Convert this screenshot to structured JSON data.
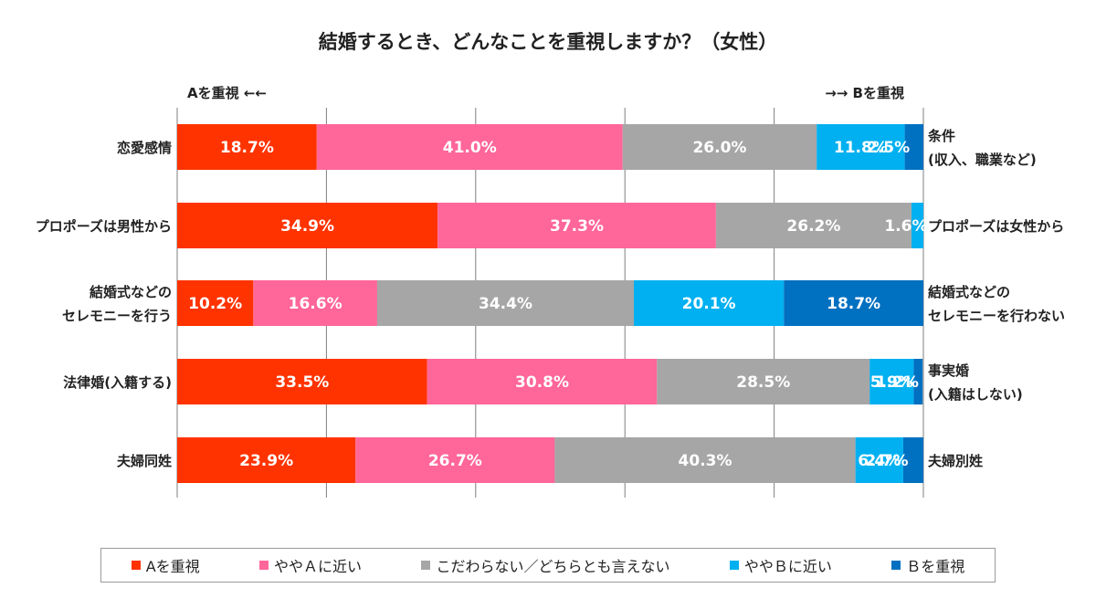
{
  "chart_data": {
    "type": "bar",
    "orientation": "horizontal",
    "stacked": true,
    "percent": true,
    "title": "結婚するとき、どんなことを重視しますか？（女性）",
    "left_header": "Aを重視 ←←",
    "right_header": "→→ Bを重視",
    "categories_left": [
      "恋愛感情",
      "プロポーズは男性から",
      "結婚式などの\nセレモニーを行う",
      "法律婚(入籍する)",
      "夫婦同姓"
    ],
    "categories_right": [
      "条件\n(収入、職業など)",
      "プロポーズは女性から",
      "結婚式などの\nセレモニーを行わない",
      "事実婚\n(入籍はしない)",
      "夫婦別姓"
    ],
    "series": [
      {
        "name": "Aを重視",
        "color": "#ff3300",
        "values": [
          18.7,
          34.9,
          10.2,
          33.5,
          23.9
        ],
        "labels": [
          "18.7%",
          "34.9%",
          "10.2%",
          "33.5%",
          "23.9%"
        ]
      },
      {
        "name": "ややＡに近い",
        "color": "#ff6699",
        "values": [
          41.0,
          37.3,
          16.6,
          30.8,
          26.7
        ],
        "labels": [
          "41.0%",
          "37.3%",
          "16.6%",
          "30.8%",
          "26.7%"
        ]
      },
      {
        "name": "こだわらない／どちらとも言えない",
        "color": "#a6a6a6",
        "values": [
          26.0,
          26.2,
          34.4,
          28.5,
          40.3
        ],
        "labels": [
          "26.0%",
          "26.2%",
          "34.4%",
          "28.5%",
          "40.3%"
        ]
      },
      {
        "name": "ややＢに近い",
        "color": "#00b0f0",
        "values": [
          11.8,
          1.6,
          20.1,
          5.9,
          6.4
        ],
        "labels": [
          "11.8%",
          "1.6%",
          "20.1%",
          "5.9%",
          "6.4%"
        ]
      },
      {
        "name": "Ｂを重視",
        "color": "#0070c0",
        "values": [
          2.5,
          0.0,
          18.7,
          1.2,
          2.7
        ],
        "labels": [
          "2.5%",
          "",
          "18.7%",
          "1.2%",
          "2.7%"
        ]
      }
    ],
    "xlim": [
      0,
      100
    ],
    "grid": true,
    "legend_position": "bottom"
  }
}
